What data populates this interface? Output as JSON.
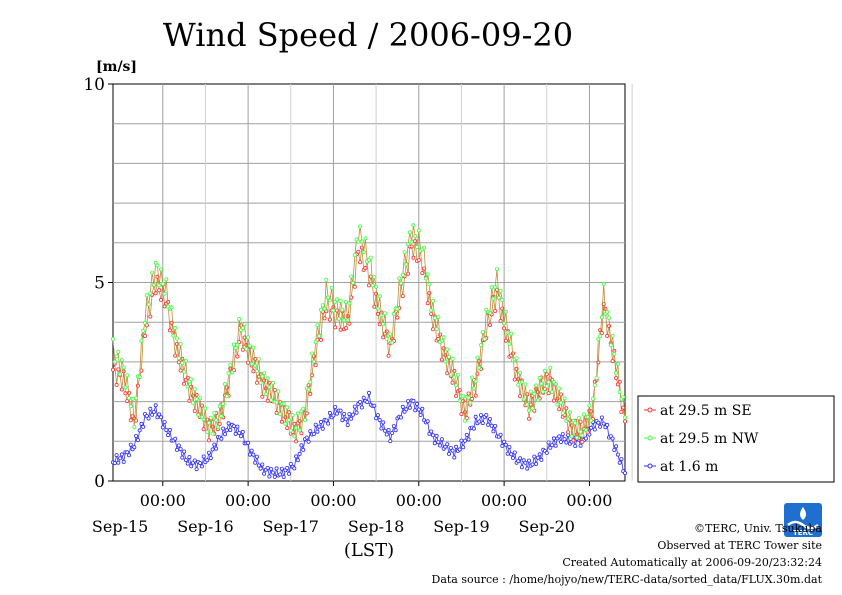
{
  "chart_data": {
    "type": "line",
    "title": "Wind Speed / 2006-09-20",
    "ylabel": "[m/s]",
    "xlabel": "(LST)",
    "ylim": [
      0,
      10
    ],
    "y_ticks": [
      "0",
      "5",
      "10"
    ],
    "x_major_ticks": [
      "00:00",
      "00:00",
      "00:00",
      "00:00",
      "00:00",
      "00:00"
    ],
    "x_day_labels": [
      "Sep-15",
      "Sep-16",
      "Sep-17",
      "Sep-18",
      "Sep-19",
      "Sep-20"
    ],
    "grid": true,
    "legend_position": "right",
    "series": [
      {
        "name": "at 29.5 m SE",
        "color": "#ff3030",
        "line_color": "#c08a3a",
        "x_hours": [
          0,
          3,
          6,
          9,
          12,
          15,
          18,
          21,
          24,
          27,
          30,
          33,
          36,
          39,
          42,
          45,
          48,
          51,
          54,
          57,
          60,
          63,
          66,
          69,
          72,
          75,
          78,
          81,
          84,
          87,
          90,
          93,
          96,
          99,
          102,
          105,
          108,
          111,
          114,
          117,
          120,
          123,
          126,
          129,
          132,
          135,
          138,
          141,
          144
        ],
        "values": [
          2.8,
          2.5,
          1.4,
          3.8,
          5.0,
          4.5,
          3.2,
          2.4,
          1.8,
          1.3,
          1.5,
          2.6,
          3.7,
          3.0,
          2.4,
          2.1,
          1.7,
          1.2,
          1.6,
          3.2,
          4.4,
          4.1,
          3.9,
          5.8,
          5.2,
          4.1,
          3.3,
          4.7,
          5.9,
          5.5,
          4.0,
          3.2,
          2.5,
          1.7,
          2.4,
          3.8,
          4.7,
          3.5,
          2.5,
          1.8,
          2.3,
          2.5,
          1.9,
          1.3,
          1.2,
          1.8,
          4.4,
          3.0,
          1.5
        ]
      },
      {
        "name": "at 29.5 m NW",
        "color": "#40ff40",
        "line_color": "#c08a3a",
        "x_hours": [
          0,
          3,
          6,
          9,
          12,
          15,
          18,
          21,
          24,
          27,
          30,
          33,
          36,
          39,
          42,
          45,
          48,
          51,
          54,
          57,
          60,
          63,
          66,
          69,
          72,
          75,
          78,
          81,
          84,
          87,
          90,
          93,
          96,
          99,
          102,
          105,
          108,
          111,
          114,
          117,
          120,
          123,
          126,
          129,
          132,
          135,
          138,
          141,
          144
        ],
        "values": [
          3.3,
          2.8,
          1.6,
          4.2,
          5.4,
          4.8,
          3.5,
          2.6,
          1.9,
          1.4,
          1.6,
          2.8,
          4.0,
          3.2,
          2.6,
          2.2,
          1.8,
          1.3,
          1.8,
          3.5,
          4.8,
          4.4,
          4.2,
          6.3,
          5.6,
          4.4,
          3.5,
          5.1,
          6.3,
          5.9,
          4.3,
          3.4,
          2.7,
          1.8,
          2.6,
          4.1,
          5.1,
          3.8,
          2.7,
          1.9,
          2.4,
          2.6,
          2.0,
          1.4,
          1.3,
          1.9,
          4.7,
          3.2,
          1.6
        ]
      },
      {
        "name": "at 1.6 m",
        "color": "#3030ff",
        "line_color": "#3030ff",
        "x_hours": [
          0,
          3,
          6,
          9,
          12,
          15,
          18,
          21,
          24,
          27,
          30,
          33,
          36,
          39,
          42,
          45,
          48,
          51,
          54,
          57,
          60,
          63,
          66,
          69,
          72,
          75,
          78,
          81,
          84,
          87,
          90,
          93,
          96,
          99,
          102,
          105,
          108,
          111,
          114,
          117,
          120,
          123,
          126,
          129,
          132,
          135,
          138,
          141,
          144
        ],
        "values": [
          0.5,
          0.6,
          0.9,
          1.6,
          1.8,
          1.3,
          0.9,
          0.5,
          0.4,
          0.6,
          1.1,
          1.4,
          1.2,
          0.7,
          0.3,
          0.2,
          0.2,
          0.4,
          1.0,
          1.3,
          1.5,
          1.8,
          1.5,
          1.9,
          2.1,
          1.5,
          1.1,
          1.7,
          2.0,
          1.7,
          1.1,
          0.9,
          0.7,
          1.0,
          1.5,
          1.6,
          1.2,
          0.8,
          0.5,
          0.4,
          0.6,
          0.9,
          1.1,
          1.0,
          1.0,
          1.4,
          1.5,
          0.9,
          0.2
        ]
      }
    ]
  },
  "footer": {
    "copyright": "©TERC, Univ. Tsukuba",
    "observed": "Observed at TERC Tower site",
    "created": "Created Automatically at 2006-09-20/23:32:24",
    "source": "Data source : /home/hojyo/new/TERC-data/sorted_data/FLUX.30m.dat"
  },
  "logo": {
    "text": "TERC",
    "color": "#1e6fd0"
  }
}
